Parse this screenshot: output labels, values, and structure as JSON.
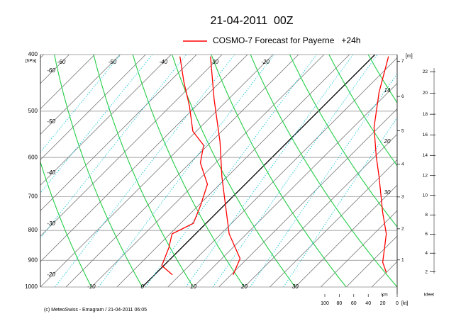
{
  "chart_data": {
    "type": "emagram",
    "title": "21-04-2011  00Z",
    "legend": "COSMO-7 Forecast for Payerne   +24h",
    "legend_color": "#ff0000",
    "footer": "(c) MeteoSwiss - Emagram / 21-04-2011 06:05",
    "y_label": "[hPa]",
    "ylim": [
      1000,
      400
    ],
    "ylog": true,
    "yticks": [
      400,
      500,
      600,
      700,
      800,
      900,
      1000
    ],
    "xlim": [
      -20,
      50
    ],
    "xticks": [
      -10,
      0,
      10,
      20,
      30
    ],
    "isotherm_ticks": [
      -60,
      -50,
      -40,
      -30,
      -20
    ],
    "left_labels": [
      "-60",
      "-50",
      "-40",
      "-30",
      "-20"
    ],
    "right_labels": [
      "14",
      "20",
      "30"
    ],
    "height_label": "[m]",
    "height_unit": "km",
    "height_ticks": [
      1,
      2,
      3,
      4,
      5,
      6,
      7
    ],
    "kfeet_unit": "kfeet",
    "kfeet_ticks": [
      2,
      4,
      6,
      8,
      10,
      12,
      14,
      16,
      18,
      20,
      22
    ],
    "wind_unit": "[kt]",
    "wind_lim": [
      0,
      100
    ],
    "wind_ticks": [
      100,
      80,
      60,
      40,
      20,
      0
    ],
    "series": [
      {
        "color": "#ff0000",
        "pressure": [
          953,
          894,
          811,
          725,
          648,
          564,
          477,
          403
        ],
        "values": [
          15.4,
          13.6,
          6.6,
          0.3,
          -6.0,
          -13.3,
          -22.8,
          -31.9
        ]
      },
      {
        "color": "#ff0000",
        "pressure": [
          953,
          919,
          857,
          811,
          778,
          725,
          667,
          613,
          572,
          541,
          490,
          445,
          403
        ],
        "values": [
          3.5,
          -0.4,
          -2.5,
          -4.6,
          -2.5,
          -4.6,
          -7.4,
          -13.0,
          -15.8,
          -20.7,
          -26.3,
          -32.2,
          -37.9
        ]
      },
      {
        "color": "#ff0000",
        "axis": "wind",
        "pressure": [
          945,
          907,
          811,
          746,
          648,
          596,
          533,
          464,
          403
        ],
        "values": [
          15,
          20,
          15,
          20,
          25,
          29,
          32,
          25,
          12
        ]
      }
    ]
  }
}
